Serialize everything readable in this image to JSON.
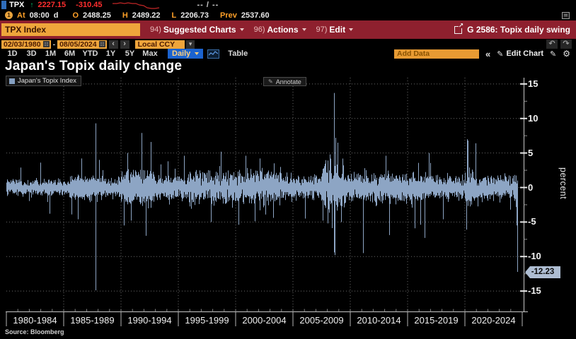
{
  "icons": {
    "up_arrow": "↑",
    "caret_down": "▾",
    "prev": "‹",
    "next": "›",
    "undo": "↶",
    "redo": "↷",
    "collapse": "«",
    "pencil": "✎",
    "gear": "⚙",
    "export_arrow": "↗",
    "annotate_pencil": "✎"
  },
  "security_bar": {
    "ticker": "TPX",
    "last_price": "2227.15",
    "change": "-310.45",
    "range_placeholder": "-- / --",
    "delayed_badge": "1",
    "session": {
      "at_label": "At",
      "time": "08:00",
      "flag": "d",
      "open_label": "O",
      "open": "2488.25",
      "high_label": "H",
      "high": "2489.22",
      "low_label": "L",
      "low": "2206.73",
      "prev_label": "Prev",
      "prev": "2537.60"
    }
  },
  "function_bar": {
    "security_field": "TPX Index",
    "menus": [
      {
        "key": "94)",
        "label": "Suggested Charts"
      },
      {
        "key": "96)",
        "label": "Actions"
      },
      {
        "key": "97)",
        "label": "Edit"
      }
    ],
    "screen_label": "G 2586: Topix daily swing"
  },
  "controls": {
    "date_from": "02/03/1980",
    "date_separator": "-",
    "date_to": "08/05/2024",
    "currency": "Local CCY",
    "ranges": [
      "1D",
      "3D",
      "1M",
      "6M",
      "YTD",
      "1Y",
      "5Y",
      "Max"
    ],
    "period_selected": "Daily",
    "table_label": "Table",
    "add_data_placeholder": "Add Data",
    "edit_chart_label": "Edit Chart"
  },
  "chart": {
    "title": "Japan's Topix daily change",
    "legend": "Japan's Topix Index",
    "annotate_label": "Annotate",
    "last_label": "-12.23",
    "source": "Source: Bloomberg"
  },
  "chart_data": {
    "type": "bar",
    "title": "Japan's Topix daily change",
    "series_name": "Japan's Topix Index",
    "ylabel": "percent",
    "ylim": [
      -16.5,
      16
    ],
    "yticks_major": [
      15,
      10,
      5,
      0,
      -5,
      -10,
      -15
    ],
    "yticks_minor": [
      12.5,
      7.5,
      2.5,
      -2.5,
      -7.5,
      -12.5
    ],
    "x_periods": [
      "1980-1984",
      "1985-1989",
      "1990-1994",
      "1995-1999",
      "2000-2004",
      "2005-2009",
      "2010-2014",
      "2015-2019",
      "2020-2024"
    ],
    "x_start": 1980.05,
    "x_end": 2024.58,
    "grid": true,
    "legend_position": "top-left",
    "bar_color": "#8da5c4",
    "last_point": {
      "date": "08/05/2024",
      "value": -12.23
    },
    "typical_daily_range": [
      -2,
      2
    ],
    "volatility_eras": [
      {
        "start": 1980.0,
        "end": 1985.5,
        "vol": 0.5
      },
      {
        "start": 1985.5,
        "end": 1988.0,
        "vol": 0.85
      },
      {
        "start": 1988.0,
        "end": 1990.0,
        "vol": 0.65
      },
      {
        "start": 1990.0,
        "end": 1993.0,
        "vol": 1.15
      },
      {
        "start": 1993.0,
        "end": 1996.0,
        "vol": 0.8
      },
      {
        "start": 1996.0,
        "end": 2004.0,
        "vol": 1.0
      },
      {
        "start": 2004.0,
        "end": 2007.5,
        "vol": 0.72
      },
      {
        "start": 2007.5,
        "end": 2009.5,
        "vol": 1.45
      },
      {
        "start": 2009.5,
        "end": 2014.0,
        "vol": 0.95
      },
      {
        "start": 2014.0,
        "end": 2017.0,
        "vol": 0.85
      },
      {
        "start": 2017.0,
        "end": 2020.0,
        "vol": 0.7
      },
      {
        "start": 2020.0,
        "end": 2021.0,
        "vol": 1.05
      },
      {
        "start": 2021.0,
        "end": 2024.6,
        "vol": 0.78
      }
    ],
    "key_points": [
      {
        "x": 1981.3,
        "value": 2.9
      },
      {
        "x": 1983.0,
        "value": 3.6
      },
      {
        "x": 1983.8,
        "value": -3.8
      },
      {
        "x": 1985.7,
        "value": -3.9
      },
      {
        "x": 1986.3,
        "value": -4.6
      },
      {
        "x": 1986.6,
        "value": 4.2
      },
      {
        "x": 1987.8,
        "value": -14.9
      },
      {
        "x": 1987.84,
        "value": 9.3
      },
      {
        "x": 1988.1,
        "value": 4.0
      },
      {
        "x": 1990.3,
        "value": -5.5
      },
      {
        "x": 1990.6,
        "value": 5.0
      },
      {
        "x": 1990.9,
        "value": -4.8
      },
      {
        "x": 1991.85,
        "value": 7.9
      },
      {
        "x": 1992.2,
        "value": -7.0
      },
      {
        "x": 1992.65,
        "value": 6.6
      },
      {
        "x": 1994.1,
        "value": 3.8
      },
      {
        "x": 1995.5,
        "value": 4.6
      },
      {
        "x": 1997.85,
        "value": -5.0
      },
      {
        "x": 1998.75,
        "value": 5.2
      },
      {
        "x": 2000.3,
        "value": -5.4
      },
      {
        "x": 2000.9,
        "value": 4.6
      },
      {
        "x": 2001.7,
        "value": -4.9
      },
      {
        "x": 2002.1,
        "value": 4.2
      },
      {
        "x": 2003.3,
        "value": -4.4
      },
      {
        "x": 2006.05,
        "value": -4.5
      },
      {
        "x": 2007.6,
        "value": -4.8
      },
      {
        "x": 2008.07,
        "value": -5.2
      },
      {
        "x": 2008.25,
        "value": 4.8
      },
      {
        "x": 2008.58,
        "value": 13.7
      },
      {
        "x": 2008.62,
        "value": -9.4
      },
      {
        "x": 2008.66,
        "value": -9.8
      },
      {
        "x": 2008.7,
        "value": 7.2
      },
      {
        "x": 2008.9,
        "value": 6.5
      },
      {
        "x": 2009.2,
        "value": -5.0
      },
      {
        "x": 2011.15,
        "value": -9.5
      },
      {
        "x": 2013.1,
        "value": 4.6
      },
      {
        "x": 2013.4,
        "value": -6.9
      },
      {
        "x": 2015.65,
        "value": -5.9
      },
      {
        "x": 2016.1,
        "value": -5.4
      },
      {
        "x": 2016.48,
        "value": -7.3
      },
      {
        "x": 2016.85,
        "value": 5.0
      },
      {
        "x": 2018.1,
        "value": -4.6
      },
      {
        "x": 2020.15,
        "value": -6.1
      },
      {
        "x": 2020.18,
        "value": 7.0
      },
      {
        "x": 2020.24,
        "value": 6.8
      },
      {
        "x": 2020.95,
        "value": 6.4
      },
      {
        "x": 2024.5,
        "value": -5.5
      },
      {
        "x": 2024.57,
        "value": -12.23
      }
    ]
  }
}
